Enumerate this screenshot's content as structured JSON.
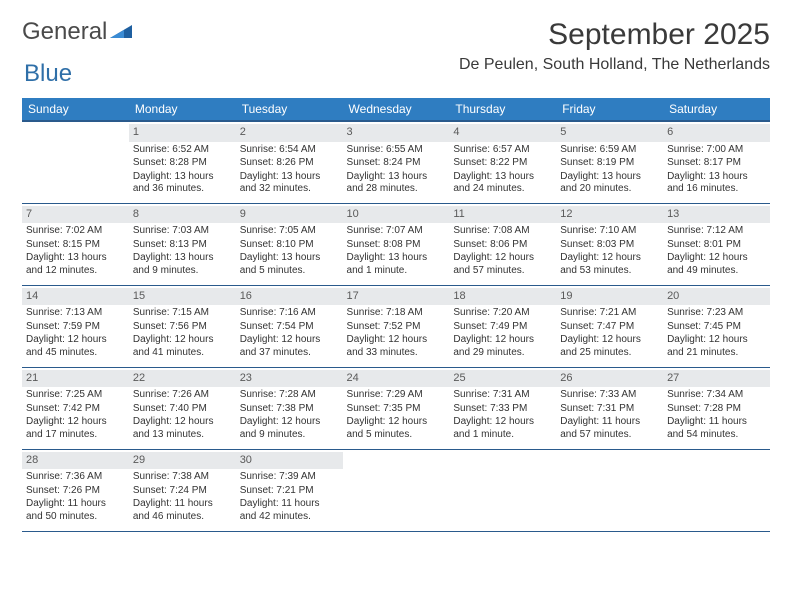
{
  "logo": {
    "text_general": "General",
    "text_blue": "Blue"
  },
  "header": {
    "month_title": "September 2025",
    "location": "De Peulen, South Holland, The Netherlands"
  },
  "colors": {
    "header_bar": "#2f7dc1",
    "header_bar_border": "#2a5a8c",
    "daynum_bg": "#e7e9eb",
    "text": "#333333",
    "logo_gray": "#5a646b",
    "logo_blue": "#2f6fa8",
    "background": "#ffffff"
  },
  "weekdays": [
    "Sunday",
    "Monday",
    "Tuesday",
    "Wednesday",
    "Thursday",
    "Friday",
    "Saturday"
  ],
  "labels": {
    "sunrise": "Sunrise:",
    "sunset": "Sunset:",
    "daylight": "Daylight:"
  },
  "weeks": [
    [
      null,
      {
        "n": "1",
        "sr": "6:52 AM",
        "ss": "8:28 PM",
        "dl": "13 hours and 36 minutes."
      },
      {
        "n": "2",
        "sr": "6:54 AM",
        "ss": "8:26 PM",
        "dl": "13 hours and 32 minutes."
      },
      {
        "n": "3",
        "sr": "6:55 AM",
        "ss": "8:24 PM",
        "dl": "13 hours and 28 minutes."
      },
      {
        "n": "4",
        "sr": "6:57 AM",
        "ss": "8:22 PM",
        "dl": "13 hours and 24 minutes."
      },
      {
        "n": "5",
        "sr": "6:59 AM",
        "ss": "8:19 PM",
        "dl": "13 hours and 20 minutes."
      },
      {
        "n": "6",
        "sr": "7:00 AM",
        "ss": "8:17 PM",
        "dl": "13 hours and 16 minutes."
      }
    ],
    [
      {
        "n": "7",
        "sr": "7:02 AM",
        "ss": "8:15 PM",
        "dl": "13 hours and 12 minutes."
      },
      {
        "n": "8",
        "sr": "7:03 AM",
        "ss": "8:13 PM",
        "dl": "13 hours and 9 minutes."
      },
      {
        "n": "9",
        "sr": "7:05 AM",
        "ss": "8:10 PM",
        "dl": "13 hours and 5 minutes."
      },
      {
        "n": "10",
        "sr": "7:07 AM",
        "ss": "8:08 PM",
        "dl": "13 hours and 1 minute."
      },
      {
        "n": "11",
        "sr": "7:08 AM",
        "ss": "8:06 PM",
        "dl": "12 hours and 57 minutes."
      },
      {
        "n": "12",
        "sr": "7:10 AM",
        "ss": "8:03 PM",
        "dl": "12 hours and 53 minutes."
      },
      {
        "n": "13",
        "sr": "7:12 AM",
        "ss": "8:01 PM",
        "dl": "12 hours and 49 minutes."
      }
    ],
    [
      {
        "n": "14",
        "sr": "7:13 AM",
        "ss": "7:59 PM",
        "dl": "12 hours and 45 minutes."
      },
      {
        "n": "15",
        "sr": "7:15 AM",
        "ss": "7:56 PM",
        "dl": "12 hours and 41 minutes."
      },
      {
        "n": "16",
        "sr": "7:16 AM",
        "ss": "7:54 PM",
        "dl": "12 hours and 37 minutes."
      },
      {
        "n": "17",
        "sr": "7:18 AM",
        "ss": "7:52 PM",
        "dl": "12 hours and 33 minutes."
      },
      {
        "n": "18",
        "sr": "7:20 AM",
        "ss": "7:49 PM",
        "dl": "12 hours and 29 minutes."
      },
      {
        "n": "19",
        "sr": "7:21 AM",
        "ss": "7:47 PM",
        "dl": "12 hours and 25 minutes."
      },
      {
        "n": "20",
        "sr": "7:23 AM",
        "ss": "7:45 PM",
        "dl": "12 hours and 21 minutes."
      }
    ],
    [
      {
        "n": "21",
        "sr": "7:25 AM",
        "ss": "7:42 PM",
        "dl": "12 hours and 17 minutes."
      },
      {
        "n": "22",
        "sr": "7:26 AM",
        "ss": "7:40 PM",
        "dl": "12 hours and 13 minutes."
      },
      {
        "n": "23",
        "sr": "7:28 AM",
        "ss": "7:38 PM",
        "dl": "12 hours and 9 minutes."
      },
      {
        "n": "24",
        "sr": "7:29 AM",
        "ss": "7:35 PM",
        "dl": "12 hours and 5 minutes."
      },
      {
        "n": "25",
        "sr": "7:31 AM",
        "ss": "7:33 PM",
        "dl": "12 hours and 1 minute."
      },
      {
        "n": "26",
        "sr": "7:33 AM",
        "ss": "7:31 PM",
        "dl": "11 hours and 57 minutes."
      },
      {
        "n": "27",
        "sr": "7:34 AM",
        "ss": "7:28 PM",
        "dl": "11 hours and 54 minutes."
      }
    ],
    [
      {
        "n": "28",
        "sr": "7:36 AM",
        "ss": "7:26 PM",
        "dl": "11 hours and 50 minutes."
      },
      {
        "n": "29",
        "sr": "7:38 AM",
        "ss": "7:24 PM",
        "dl": "11 hours and 46 minutes."
      },
      {
        "n": "30",
        "sr": "7:39 AM",
        "ss": "7:21 PM",
        "dl": "11 hours and 42 minutes."
      },
      null,
      null,
      null,
      null
    ]
  ]
}
